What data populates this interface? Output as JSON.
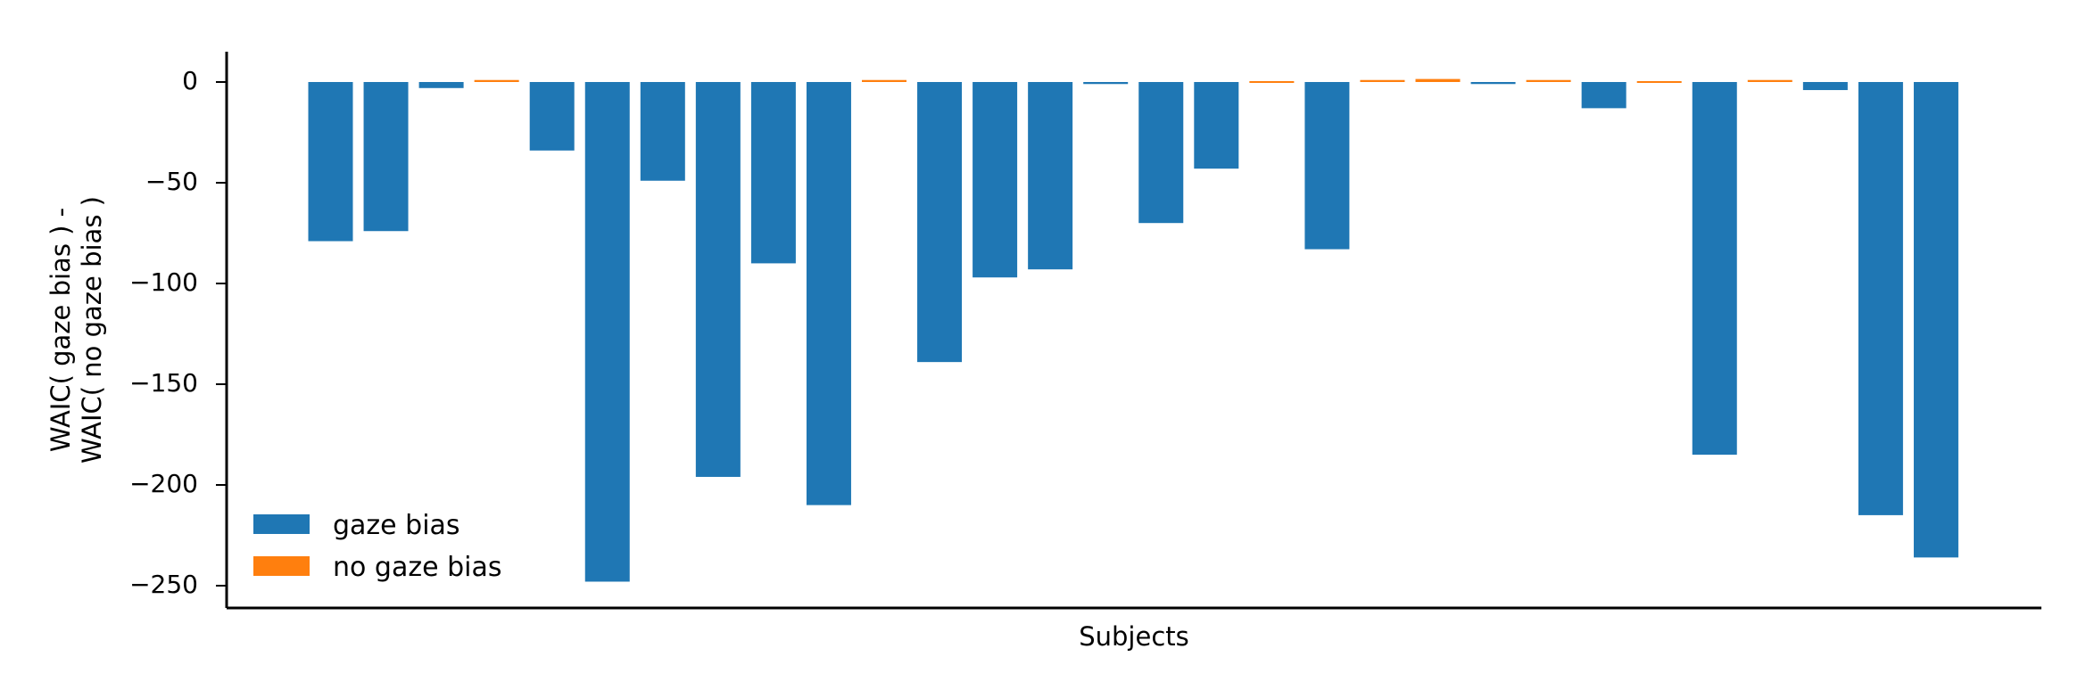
{
  "chart_data": {
    "type": "bar",
    "title": "",
    "xlabel": "Subjects",
    "ylabel_lines": [
      "WAIC( gaze bias ) -",
      "WAIC( no gaze bias )"
    ],
    "ylim": [
      -260,
      15
    ],
    "yticks": [
      0,
      -50,
      -100,
      -150,
      -200,
      -250
    ],
    "ytick_labels": [
      "0",
      "−50",
      "−100",
      "−150",
      "−200",
      "−250"
    ],
    "grid": false,
    "legend_position": "bottom-left",
    "series": [
      {
        "name": "gaze bias",
        "color": "#1f77b4"
      },
      {
        "name": "no gaze bias",
        "color": "#ff7f0e"
      }
    ],
    "values": [
      -79,
      -74,
      -3,
      1,
      -34,
      -248,
      -49,
      -196,
      -90,
      -210,
      1,
      -139,
      -97,
      -93,
      -1,
      -70,
      -43,
      0.4,
      -83,
      1,
      1.5,
      -1,
      1,
      -13,
      0.4,
      -185,
      1,
      -4,
      -215,
      -236
    ],
    "preferred": [
      "gaze bias",
      "gaze bias",
      "gaze bias",
      "no gaze bias",
      "gaze bias",
      "gaze bias",
      "gaze bias",
      "gaze bias",
      "gaze bias",
      "gaze bias",
      "no gaze bias",
      "gaze bias",
      "gaze bias",
      "gaze bias",
      "gaze bias",
      "gaze bias",
      "gaze bias",
      "no gaze bias",
      "gaze bias",
      "no gaze bias",
      "no gaze bias",
      "gaze bias",
      "no gaze bias",
      "gaze bias",
      "no gaze bias",
      "gaze bias",
      "no gaze bias",
      "gaze bias",
      "gaze bias",
      "gaze bias"
    ]
  }
}
